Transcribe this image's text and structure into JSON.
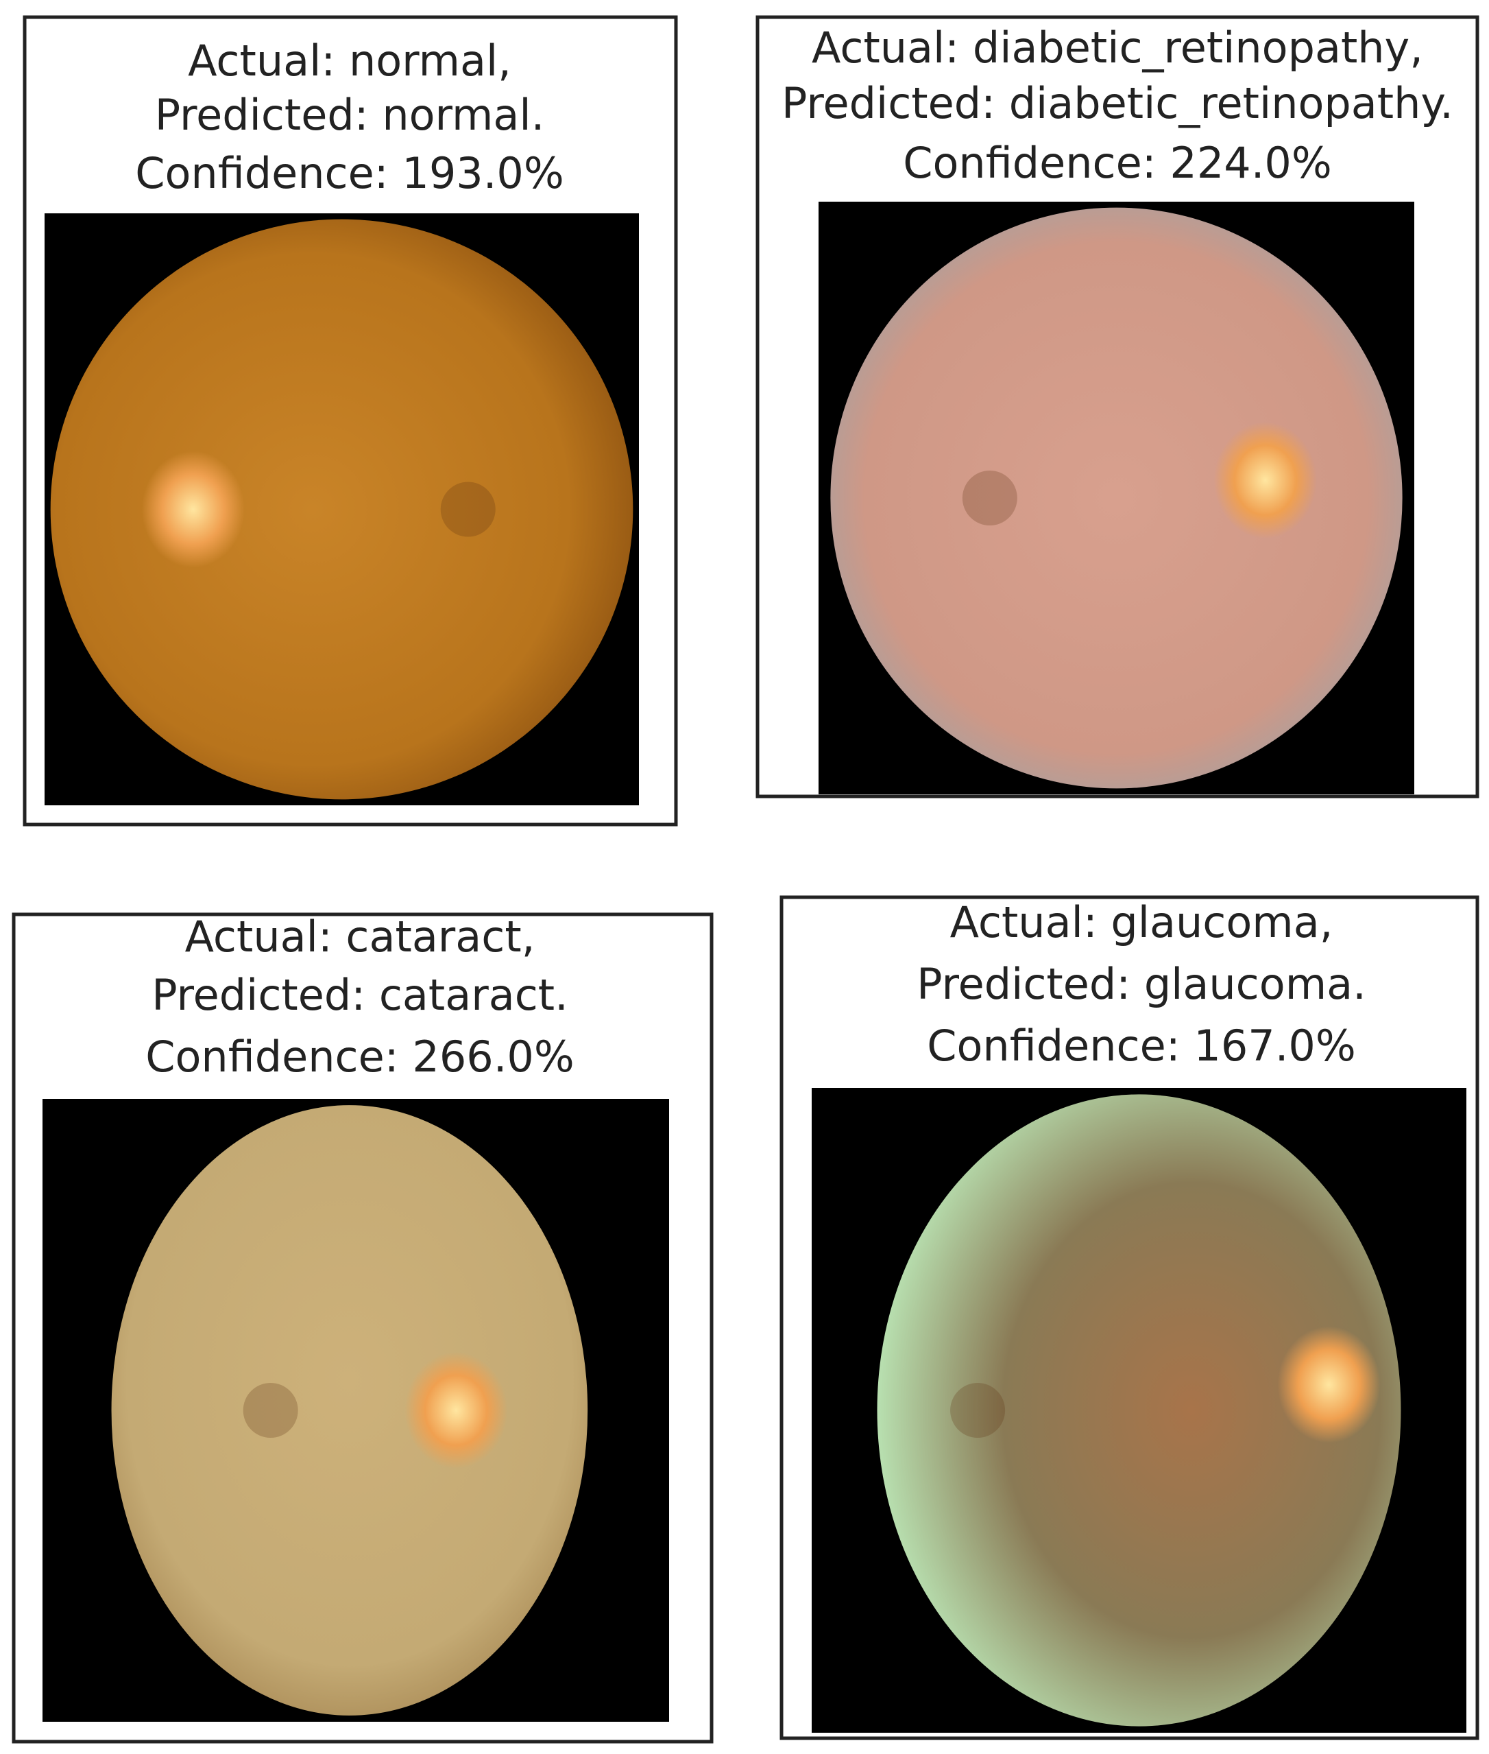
{
  "panels": [
    {
      "actual": "Actual: normal,",
      "predicted": "Predicted: normal.",
      "confidence": "Confidence: 193.0%"
    },
    {
      "actual": "Actual: diabetic_retinopathy,",
      "predicted": "Predicted: diabetic_retinopathy.",
      "confidence": "Confidence: 224.0%"
    },
    {
      "actual": "Actual: cataract,",
      "predicted": "Predicted: cataract.",
      "confidence": "Confidence: 266.0%"
    },
    {
      "actual": "Actual: glaucoma,",
      "predicted": "Predicted: glaucoma.",
      "confidence": "Confidence: 167.0%"
    }
  ]
}
